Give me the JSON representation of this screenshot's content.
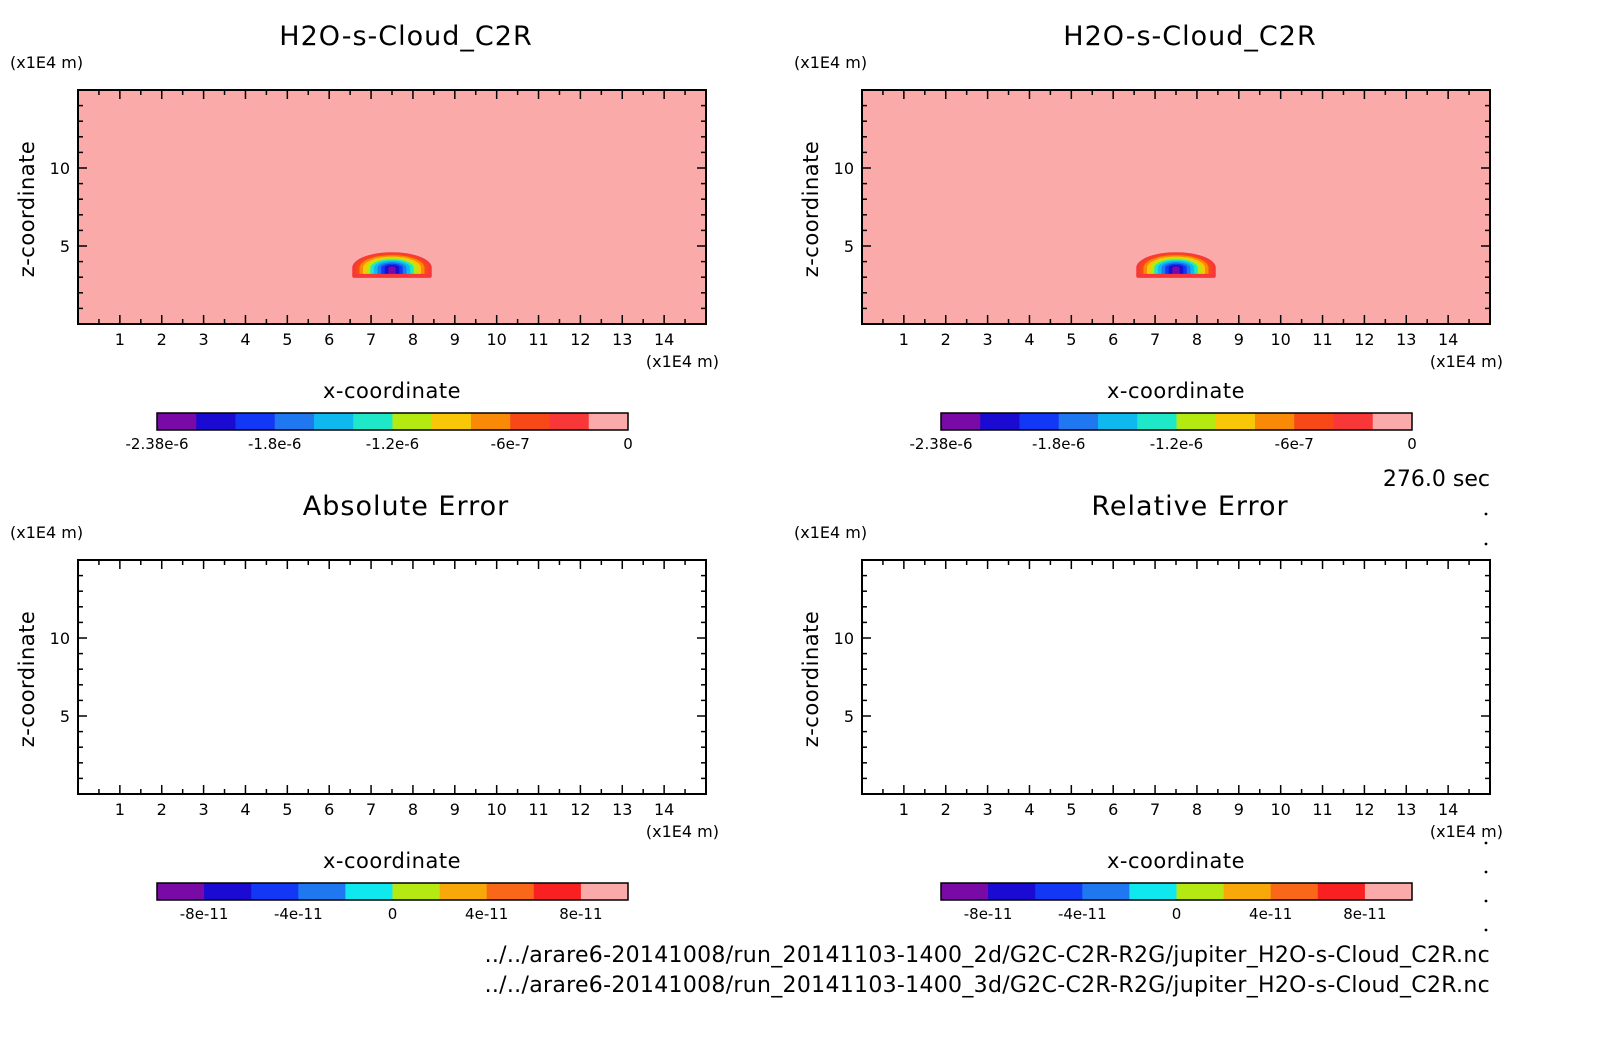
{
  "time_label": "276.0 sec",
  "file_paths": [
    "../../arare6-20141008/run_20141103-1400_2d/G2C-C2R-R2G/jupiter_H2O-s-Cloud_C2R.nc",
    "../../arare6-20141008/run_20141103-1400_3d/G2C-C2R-R2G/jupiter_H2O-s-Cloud_C2R.nc"
  ],
  "chart_data": [
    {
      "type": "heatmap",
      "title": "H2O-s-Cloud_C2R",
      "xlabel": "x-coordinate",
      "ylabel": "z-coordinate",
      "x_unit": "(x1E4 m)",
      "y_unit": "(x1E4 m)",
      "xlim": [
        0,
        15
      ],
      "ylim": [
        0,
        15
      ],
      "x_ticks": [
        1,
        2,
        3,
        4,
        5,
        6,
        7,
        8,
        9,
        10,
        11,
        12,
        13,
        14
      ],
      "y_ticks": [
        5,
        10
      ],
      "background_value": 0,
      "cloud": {
        "x_center": 7.5,
        "z_base": 3.6,
        "half_width": 0.95,
        "height": 1.0,
        "min_value": -2.38e-06
      },
      "colorbar": {
        "colors": [
          "#7a0aa5",
          "#1a0ad2",
          "#1238f5",
          "#1f78f0",
          "#10b8f0",
          "#1ee8c8",
          "#b4ea12",
          "#f8c808",
          "#f88a08",
          "#f84818",
          "#f83838",
          "#fbaaaa"
        ],
        "tick_labels": [
          "-2.38e-6",
          "-1.8e-6",
          "-1.2e-6",
          "-6e-7",
          "0"
        ]
      }
    },
    {
      "type": "heatmap",
      "title": "H2O-s-Cloud_C2R",
      "xlabel": "x-coordinate",
      "ylabel": "z-coordinate",
      "x_unit": "(x1E4 m)",
      "y_unit": "(x1E4 m)",
      "xlim": [
        0,
        15
      ],
      "ylim": [
        0,
        15
      ],
      "x_ticks": [
        1,
        2,
        3,
        4,
        5,
        6,
        7,
        8,
        9,
        10,
        11,
        12,
        13,
        14
      ],
      "y_ticks": [
        5,
        10
      ],
      "background_value": 0,
      "cloud": {
        "x_center": 7.5,
        "z_base": 3.6,
        "half_width": 0.95,
        "height": 1.0,
        "min_value": -2.38e-06
      },
      "colorbar": {
        "colors": [
          "#7a0aa5",
          "#1a0ad2",
          "#1238f5",
          "#1f78f0",
          "#10b8f0",
          "#1ee8c8",
          "#b4ea12",
          "#f8c808",
          "#f88a08",
          "#f84818",
          "#f83838",
          "#fbaaaa"
        ],
        "tick_labels": [
          "-2.38e-6",
          "-1.8e-6",
          "-1.2e-6",
          "-6e-7",
          "0"
        ]
      }
    },
    {
      "type": "heatmap",
      "title": "Absolute Error",
      "xlabel": "x-coordinate",
      "ylabel": "z-coordinate",
      "x_unit": "(x1E4 m)",
      "y_unit": "(x1E4 m)",
      "xlim": [
        0,
        15
      ],
      "ylim": [
        0,
        15
      ],
      "x_ticks": [
        1,
        2,
        3,
        4,
        5,
        6,
        7,
        8,
        9,
        10,
        11,
        12,
        13,
        14
      ],
      "y_ticks": [
        5,
        10
      ],
      "colorbar": {
        "colors": [
          "#7a0aa5",
          "#1a0ad2",
          "#1238f5",
          "#1f78f0",
          "#10e8f0",
          "#b4ea12",
          "#f8a808",
          "#f86818",
          "#f82020",
          "#fbaaaa"
        ],
        "tick_labels": [
          "-8e-11",
          "-4e-11",
          "0",
          "4e-11",
          "8e-11"
        ]
      }
    },
    {
      "type": "heatmap",
      "title": "Relative Error",
      "xlabel": "x-coordinate",
      "ylabel": "z-coordinate",
      "x_unit": "(x1E4 m)",
      "y_unit": "(x1E4 m)",
      "xlim": [
        0,
        15
      ],
      "ylim": [
        0,
        15
      ],
      "x_ticks": [
        1,
        2,
        3,
        4,
        5,
        6,
        7,
        8,
        9,
        10,
        11,
        12,
        13,
        14
      ],
      "y_ticks": [
        5,
        10
      ],
      "colorbar": {
        "colors": [
          "#7a0aa5",
          "#1a0ad2",
          "#1238f5",
          "#1f78f0",
          "#10e8f0",
          "#b4ea12",
          "#f8a808",
          "#f86818",
          "#f82020",
          "#fbaaaa"
        ],
        "tick_labels": [
          "-8e-11",
          "-4e-11",
          "0",
          "4e-11",
          "8e-11"
        ]
      }
    }
  ]
}
